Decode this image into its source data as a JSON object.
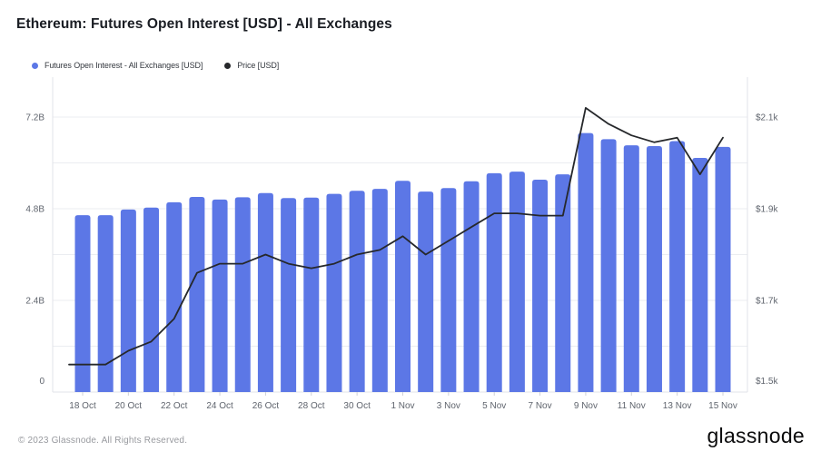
{
  "chart_data": {
    "type": "bar",
    "title": "Ethereum: Futures Open Interest [USD] - All Exchanges",
    "categories": [
      "18 Oct",
      "19 Oct",
      "20 Oct",
      "21 Oct",
      "22 Oct",
      "23 Oct",
      "24 Oct",
      "25 Oct",
      "26 Oct",
      "27 Oct",
      "28 Oct",
      "29 Oct",
      "30 Oct",
      "31 Oct",
      "1 Nov",
      "2 Nov",
      "3 Nov",
      "4 Nov",
      "5 Nov",
      "6 Nov",
      "7 Nov",
      "8 Nov",
      "9 Nov",
      "10 Nov",
      "11 Nov",
      "12 Nov",
      "13 Nov",
      "14 Nov",
      "15 Nov"
    ],
    "series": [
      {
        "name": "Futures Open Interest - All Exchanges [USD]",
        "type": "bar",
        "axis": "left",
        "unit": "B",
        "color": "#5c77e6",
        "values": [
          4.63,
          4.63,
          4.78,
          4.83,
          4.97,
          5.11,
          5.04,
          5.1,
          5.21,
          5.08,
          5.09,
          5.19,
          5.27,
          5.32,
          5.53,
          5.25,
          5.34,
          5.52,
          5.73,
          5.77,
          5.56,
          5.7,
          6.78,
          6.62,
          6.46,
          6.44,
          6.57,
          6.13,
          6.42
        ]
      },
      {
        "name": "Price [USD]",
        "type": "line",
        "axis": "right",
        "unit": "k",
        "color": "#26282b",
        "values": [
          1.56,
          1.56,
          1.59,
          1.61,
          1.66,
          1.76,
          1.78,
          1.78,
          1.8,
          1.78,
          1.77,
          1.78,
          1.8,
          1.81,
          1.84,
          1.8,
          1.83,
          1.86,
          1.89,
          1.89,
          1.885,
          1.885,
          2.12,
          2.085,
          2.06,
          2.045,
          2.055,
          1.975,
          2.055
        ]
      }
    ],
    "left_axis": {
      "min": 0,
      "max": 7.2,
      "grid_step": 1.2,
      "ticks": [
        {
          "value": 7.2,
          "label": "7.2B"
        },
        {
          "value": 4.8,
          "label": "4.8B"
        },
        {
          "value": 2.4,
          "label": "2.4B"
        },
        {
          "value": 0,
          "label": "0"
        }
      ]
    },
    "right_axis": {
      "min": 1.5,
      "max": 2.1,
      "ticks": [
        {
          "value": 2.1,
          "label": "$2.1k"
        },
        {
          "value": 1.9,
          "label": "$1.9k"
        },
        {
          "value": 1.7,
          "label": "$1.7k"
        },
        {
          "value": 1.5,
          "label": "$1.5k"
        }
      ]
    },
    "x_tick_every": 2,
    "legend_position": "top-left",
    "grid": "horizontal-only"
  },
  "footer": {
    "copyright": "© 2023 Glassnode. All Rights Reserved.",
    "brand": "glassnode"
  }
}
